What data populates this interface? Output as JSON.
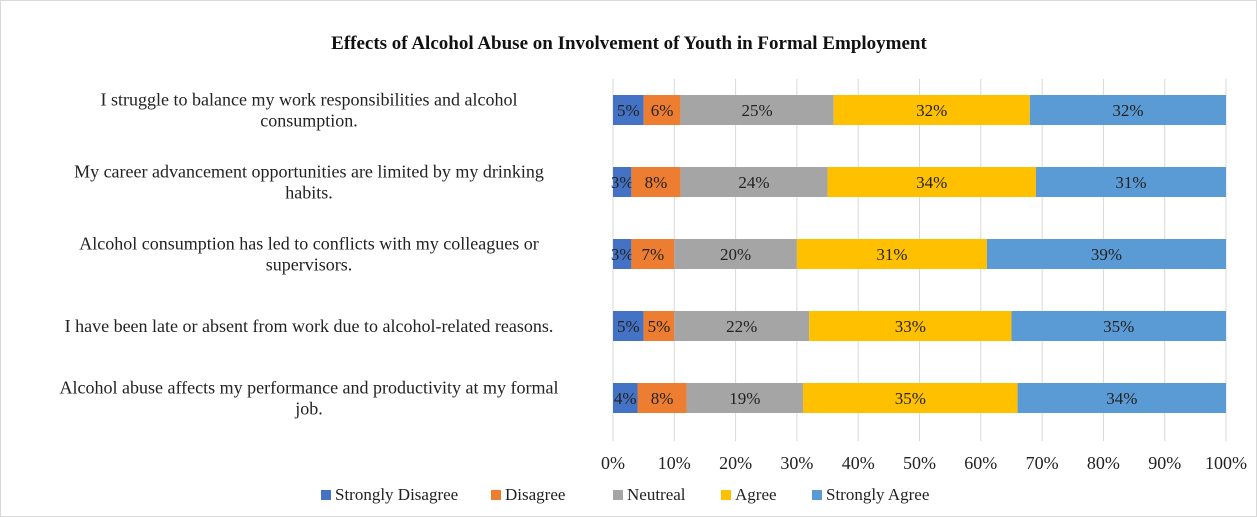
{
  "chart_data": {
    "type": "bar",
    "orientation": "horizontal",
    "stacked": "percent",
    "title": "Effects of Alcohol Abuse on Involvement of Youth in Formal Employment",
    "xlabel": "",
    "ylabel": "",
    "xlim": [
      0,
      100
    ],
    "x_ticks": [
      "0%",
      "10%",
      "20%",
      "30%",
      "40%",
      "50%",
      "60%",
      "70%",
      "80%",
      "90%",
      "100%"
    ],
    "grid": true,
    "legend_position": "bottom",
    "categories": [
      [
        "I struggle to balance my work responsibilities and alcohol",
        "consumption."
      ],
      [
        "My career advancement opportunities are limited by my drinking",
        "habits."
      ],
      [
        "Alcohol consumption has led to conflicts with my colleagues or",
        "supervisors."
      ],
      [
        "I have been late or absent from work due to alcohol-related reasons."
      ],
      [
        "Alcohol abuse affects my performance and productivity at my formal",
        "job."
      ]
    ],
    "series": [
      {
        "name": "Strongly Disagree",
        "color": "#4472C4",
        "values": [
          5,
          3,
          3,
          5,
          4
        ],
        "labels": [
          "5%",
          "3%",
          "3%",
          "5%",
          "4%"
        ]
      },
      {
        "name": "Disagree",
        "color": "#ED7D31",
        "values": [
          6,
          8,
          7,
          5,
          8
        ],
        "labels": [
          "6%",
          "8%",
          "7%",
          "5%",
          "8%"
        ]
      },
      {
        "name": "Neutreal",
        "color": "#A5A5A5",
        "values": [
          25,
          24,
          20,
          22,
          19
        ],
        "labels": [
          "25%",
          "24%",
          "20%",
          "22%",
          "19%"
        ]
      },
      {
        "name": "Agree",
        "color": "#FFC000",
        "values": [
          32,
          34,
          31,
          33,
          35
        ],
        "labels": [
          "32%",
          "34%",
          "31%",
          "33%",
          "35%"
        ]
      },
      {
        "name": "Strongly Agree",
        "color": "#5B9BD5",
        "values": [
          32,
          31,
          39,
          35,
          34
        ],
        "labels": [
          "32%",
          "31%",
          "39%",
          "35%",
          "34%"
        ]
      }
    ]
  }
}
